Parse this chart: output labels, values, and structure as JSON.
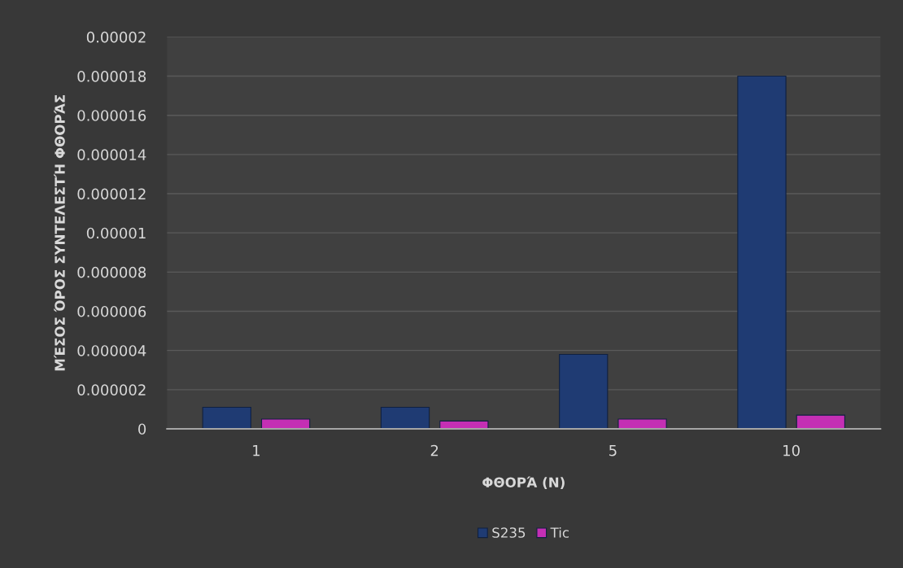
{
  "chart_data": {
    "type": "bar",
    "xlabel": "ΦΘΟΡΆ (N)",
    "ylabel": "ΜΈΣΟΣ ΌΡΟΣ ΣΥΝΤΕΛΕΣΤΉ ΦΘΟΡΆΣ",
    "categories": [
      "1",
      "2",
      "5",
      "10"
    ],
    "series": [
      {
        "name": "S235",
        "color": "#1f3b73",
        "values": [
          1.1e-06,
          1.1e-06,
          3.8e-06,
          1.8e-05
        ]
      },
      {
        "name": "Tic",
        "color": "#c42fb4",
        "values": [
          5e-07,
          4e-07,
          5e-07,
          7e-07
        ]
      }
    ],
    "ylim": [
      0,
      2e-05
    ],
    "yticks": [
      0,
      {
        "value": 2e-06,
        "label": "0.000002"
      },
      {
        "value": 4e-06,
        "label": "0.000004"
      },
      {
        "value": 6e-06,
        "label": "0.000006"
      },
      {
        "value": 8e-06,
        "label": "0.000008"
      },
      {
        "value": 1e-05,
        "label": "0.00001"
      },
      {
        "value": 1.2e-05,
        "label": "0.000012"
      },
      {
        "value": 1.4e-05,
        "label": "0.000014"
      },
      {
        "value": 1.6e-05,
        "label": "0.000016"
      },
      {
        "value": 1.8e-05,
        "label": "0.000018"
      },
      {
        "value": 2e-05,
        "label": "0.00002"
      }
    ],
    "grid": "y",
    "legend": "bottom"
  }
}
